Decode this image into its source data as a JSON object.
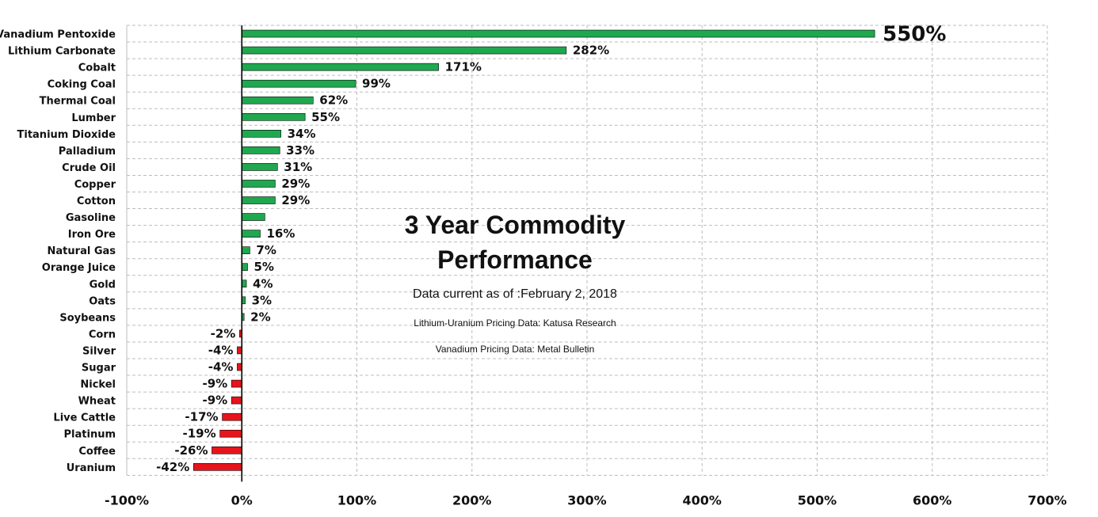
{
  "chart_data": {
    "type": "bar",
    "orientation": "horizontal",
    "title": "3 Year Commodity Performance",
    "annotations": {
      "date": "Data current as of :February 2, 2018",
      "source_lithium": "Lithium-Uranium Pricing Data: Katusa Research",
      "source_vanadium": "Vanadium Pricing Data: Metal Bulletin"
    },
    "categories": [
      "Vanadium Pentoxide",
      "Lithium Carbonate",
      "Cobalt",
      "Coking Coal",
      "Thermal Coal",
      "Lumber",
      "Titanium Dioxide",
      "Palladium",
      "Crude Oil",
      "Copper",
      "Cotton",
      "Gasoline",
      "Iron Ore",
      "Natural Gas",
      "Orange Juice",
      "Gold",
      "Oats",
      "Soybeans",
      "Corn",
      "Silver",
      "Sugar",
      "Nickel",
      "Wheat",
      "Live Cattle",
      "Platinum",
      "Coffee",
      "Uranium"
    ],
    "values": [
      550,
      282,
      171,
      99,
      62,
      55,
      34,
      33,
      31,
      29,
      29,
      20,
      16,
      7,
      5,
      4,
      3,
      2,
      -2,
      -4,
      -4,
      -9,
      -9,
      -17,
      -19,
      -26,
      -42
    ],
    "data_labels": [
      "550%",
      "282%",
      "171%",
      "99%",
      "62%",
      "55%",
      "34%",
      "33%",
      "31%",
      "29%",
      "29%",
      "",
      "16%",
      "7%",
      "5%",
      "4%",
      "3%",
      "2%",
      "-2%",
      "-4%",
      "-4%",
      "-9%",
      "-9%",
      "-17%",
      "-19%",
      "-26%",
      "-42%"
    ],
    "xlim": [
      -100,
      700
    ],
    "x_ticks": [
      -100,
      0,
      100,
      200,
      300,
      400,
      500,
      600,
      700
    ],
    "x_tick_labels": [
      "-100%",
      "0%",
      "100%",
      "200%",
      "300%",
      "400%",
      "500%",
      "600%",
      "700%"
    ],
    "grid": true,
    "colors": {
      "positive": "#1fa84f",
      "negative": "#e8141b",
      "grid": "#bdbdbd"
    }
  }
}
